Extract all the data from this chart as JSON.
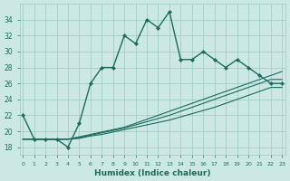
{
  "xlabel": "Humidex (Indice chaleur)",
  "x": [
    0,
    1,
    2,
    3,
    4,
    5,
    6,
    7,
    8,
    9,
    10,
    11,
    12,
    13,
    14,
    15,
    16,
    17,
    18,
    19,
    20,
    21,
    22,
    23
  ],
  "y_main": [
    22,
    19,
    19,
    19,
    18,
    21,
    26,
    28,
    28,
    32,
    31,
    34,
    33,
    35,
    29,
    29,
    30,
    29,
    28,
    29,
    28,
    27,
    26,
    26
  ],
  "y_line1": [
    19,
    19,
    19,
    19,
    19,
    19.3,
    19.6,
    19.9,
    20.2,
    20.5,
    21,
    21.5,
    22,
    22.5,
    23,
    23.5,
    24,
    24.5,
    25,
    25.5,
    26,
    26.5,
    27,
    27.5
  ],
  "y_line2": [
    19,
    19,
    19,
    19,
    19,
    19.2,
    19.5,
    19.8,
    20.1,
    20.4,
    20.8,
    21.2,
    21.6,
    22,
    22.5,
    23,
    23.5,
    24,
    24.5,
    25,
    25.5,
    26,
    26.5,
    26.5
  ],
  "y_line3": [
    19,
    19,
    19,
    19,
    19,
    19.1,
    19.4,
    19.6,
    19.9,
    20.2,
    20.5,
    20.8,
    21.1,
    21.4,
    21.8,
    22.2,
    22.6,
    23,
    23.5,
    24,
    24.5,
    25,
    25.5,
    25.5
  ],
  "line_color": "#1a6b5e",
  "bg_color": "#cce8e4",
  "grid_color": "#9dc8c2",
  "ylim": [
    17,
    36
  ],
  "yticks": [
    18,
    20,
    22,
    24,
    26,
    28,
    30,
    32,
    34
  ],
  "xticks": [
    0,
    1,
    2,
    3,
    4,
    5,
    6,
    7,
    8,
    9,
    10,
    11,
    12,
    13,
    14,
    15,
    16,
    17,
    18,
    19,
    20,
    21,
    22,
    23
  ],
  "xlim": [
    -0.3,
    23.3
  ]
}
